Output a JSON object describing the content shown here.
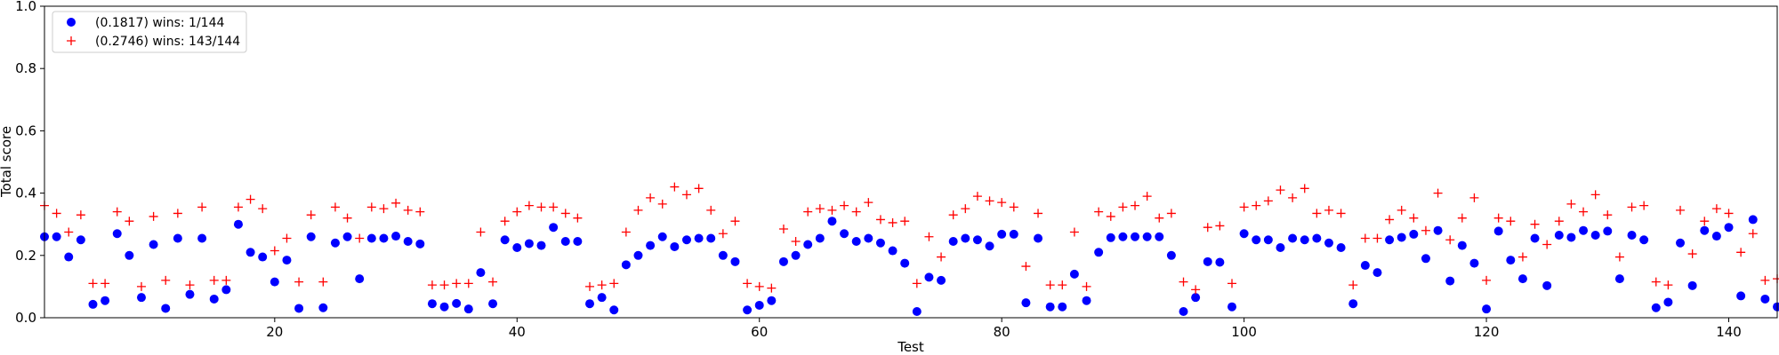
{
  "chart_data": {
    "type": "scatter",
    "xlabel": "Test",
    "ylabel": "Total score",
    "xlim": [
      1,
      144
    ],
    "ylim": [
      0,
      1.0
    ],
    "x_ticks": [
      20,
      40,
      60,
      80,
      100,
      120,
      140
    ],
    "y_ticks": [
      0.0,
      0.2,
      0.4,
      0.6,
      0.8,
      1.0
    ],
    "y_tick_labels": [
      "0.0",
      "0.2",
      "0.4",
      "0.6",
      "0.8",
      "1.0"
    ],
    "grid": false,
    "legend_position": "top-left",
    "series": [
      {
        "name": "(0.1817) wins: 1/144",
        "marker": "circle",
        "color": "#0000ff",
        "x": [
          1,
          2,
          3,
          4,
          5,
          6,
          7,
          8,
          9,
          10,
          11,
          12,
          13,
          14,
          15,
          16,
          17,
          18,
          19,
          20,
          21,
          22,
          23,
          24,
          25,
          26,
          27,
          28,
          29,
          30,
          31,
          32,
          33,
          34,
          35,
          36,
          37,
          38,
          39,
          40,
          41,
          42,
          43,
          44,
          45,
          46,
          47,
          48,
          49,
          50,
          51,
          52,
          53,
          54,
          55,
          56,
          57,
          58,
          59,
          60,
          61,
          62,
          63,
          64,
          65,
          66,
          67,
          68,
          69,
          70,
          71,
          72,
          73,
          74,
          75,
          76,
          77,
          78,
          79,
          80,
          81,
          82,
          83,
          84,
          85,
          86,
          87,
          88,
          89,
          90,
          91,
          92,
          93,
          94,
          95,
          96,
          97,
          98,
          99,
          100,
          101,
          102,
          103,
          104,
          105,
          106,
          107,
          108,
          109,
          110,
          111,
          112,
          113,
          114,
          115,
          116,
          117,
          118,
          119,
          120,
          121,
          122,
          123,
          124,
          125,
          126,
          127,
          128,
          129,
          130,
          131,
          132,
          133,
          134,
          135,
          136,
          137,
          138,
          139,
          140,
          141,
          142,
          143,
          144
        ],
        "y": [
          0.26,
          0.26,
          0.195,
          0.25,
          0.043,
          0.055,
          0.27,
          0.2,
          0.065,
          0.235,
          0.03,
          0.255,
          0.075,
          0.255,
          0.06,
          0.09,
          0.3,
          0.21,
          0.195,
          0.115,
          0.185,
          0.03,
          0.26,
          0.032,
          0.24,
          0.26,
          0.125,
          0.255,
          0.255,
          0.262,
          0.245,
          0.237,
          0.045,
          0.035,
          0.046,
          0.028,
          0.145,
          0.045,
          0.25,
          0.225,
          0.238,
          0.232,
          0.29,
          0.245,
          0.245,
          0.045,
          0.065,
          0.025,
          0.17,
          0.2,
          0.232,
          0.26,
          0.228,
          0.25,
          0.255,
          0.255,
          0.2,
          0.18,
          0.025,
          0.04,
          0.055,
          0.18,
          0.2,
          0.235,
          0.255,
          0.31,
          0.27,
          0.245,
          0.255,
          0.24,
          0.215,
          0.175,
          0.02,
          0.13,
          0.12,
          0.245,
          0.255,
          0.25,
          0.23,
          0.268,
          0.268,
          0.048,
          0.255,
          0.035,
          0.035,
          0.14,
          0.055,
          0.21,
          0.257,
          0.26,
          0.26,
          0.26,
          0.26,
          0.2,
          0.02,
          0.065,
          0.18,
          0.178,
          0.035,
          0.27,
          0.25,
          0.25,
          0.225,
          0.255,
          0.25,
          0.255,
          0.24,
          0.225,
          0.045,
          0.168,
          0.145,
          0.25,
          0.258,
          0.268,
          0.19,
          0.28,
          0.118,
          0.232,
          0.175,
          0.028,
          0.278,
          0.185,
          0.125,
          0.255,
          0.103,
          0.265,
          0.258,
          0.28,
          0.265,
          0.278,
          0.125,
          0.265,
          0.25,
          0.032,
          0.05,
          0.24,
          0.103,
          0.28,
          0.262,
          0.29,
          0.07,
          0.315,
          0.06,
          0.035
        ]
      },
      {
        "name": "(0.2746) wins: 143/144",
        "marker": "plus",
        "color": "#ff0000",
        "x": [
          1,
          2,
          3,
          4,
          5,
          6,
          7,
          8,
          9,
          10,
          11,
          12,
          13,
          14,
          15,
          16,
          17,
          18,
          19,
          20,
          21,
          22,
          23,
          24,
          25,
          26,
          27,
          28,
          29,
          30,
          31,
          32,
          33,
          34,
          35,
          36,
          37,
          38,
          39,
          40,
          41,
          42,
          43,
          44,
          45,
          46,
          47,
          48,
          49,
          50,
          51,
          52,
          53,
          54,
          55,
          56,
          57,
          58,
          59,
          60,
          61,
          62,
          63,
          64,
          65,
          66,
          67,
          68,
          69,
          70,
          71,
          72,
          73,
          74,
          75,
          76,
          77,
          78,
          79,
          80,
          81,
          82,
          83,
          84,
          85,
          86,
          87,
          88,
          89,
          90,
          91,
          92,
          93,
          94,
          95,
          96,
          97,
          98,
          99,
          100,
          101,
          102,
          103,
          104,
          105,
          106,
          107,
          108,
          109,
          110,
          111,
          112,
          113,
          114,
          115,
          116,
          117,
          118,
          119,
          120,
          121,
          122,
          123,
          124,
          125,
          126,
          127,
          128,
          129,
          130,
          131,
          132,
          133,
          134,
          135,
          136,
          137,
          138,
          139,
          140,
          141,
          142,
          143,
          144
        ],
        "y": [
          0.36,
          0.335,
          0.275,
          0.33,
          0.11,
          0.11,
          0.34,
          0.31,
          0.1,
          0.325,
          0.12,
          0.335,
          0.105,
          0.355,
          0.12,
          0.12,
          0.355,
          0.38,
          0.35,
          0.215,
          0.255,
          0.115,
          0.33,
          0.115,
          0.355,
          0.32,
          0.255,
          0.355,
          0.35,
          0.368,
          0.345,
          0.34,
          0.105,
          0.105,
          0.11,
          0.11,
          0.275,
          0.115,
          0.31,
          0.34,
          0.36,
          0.355,
          0.355,
          0.335,
          0.32,
          0.1,
          0.105,
          0.11,
          0.275,
          0.345,
          0.385,
          0.365,
          0.42,
          0.395,
          0.415,
          0.345,
          0.27,
          0.31,
          0.11,
          0.1,
          0.095,
          0.285,
          0.245,
          0.34,
          0.35,
          0.345,
          0.36,
          0.34,
          0.37,
          0.315,
          0.305,
          0.31,
          0.11,
          0.26,
          0.195,
          0.33,
          0.35,
          0.39,
          0.375,
          0.37,
          0.355,
          0.165,
          0.335,
          0.105,
          0.105,
          0.275,
          0.1,
          0.34,
          0.325,
          0.355,
          0.36,
          0.39,
          0.32,
          0.335,
          0.115,
          0.09,
          0.29,
          0.295,
          0.11,
          0.355,
          0.36,
          0.375,
          0.41,
          0.385,
          0.415,
          0.335,
          0.345,
          0.335,
          0.105,
          0.255,
          0.255,
          0.315,
          0.345,
          0.32,
          0.28,
          0.4,
          0.25,
          0.32,
          0.385,
          0.12,
          0.32,
          0.31,
          0.195,
          0.3,
          0.235,
          0.31,
          0.365,
          0.34,
          0.395,
          0.33,
          0.195,
          0.355,
          0.36,
          0.115,
          0.105,
          0.345,
          0.205,
          0.31,
          0.35,
          0.335,
          0.21,
          0.27,
          0.12,
          0.125
        ]
      }
    ]
  }
}
